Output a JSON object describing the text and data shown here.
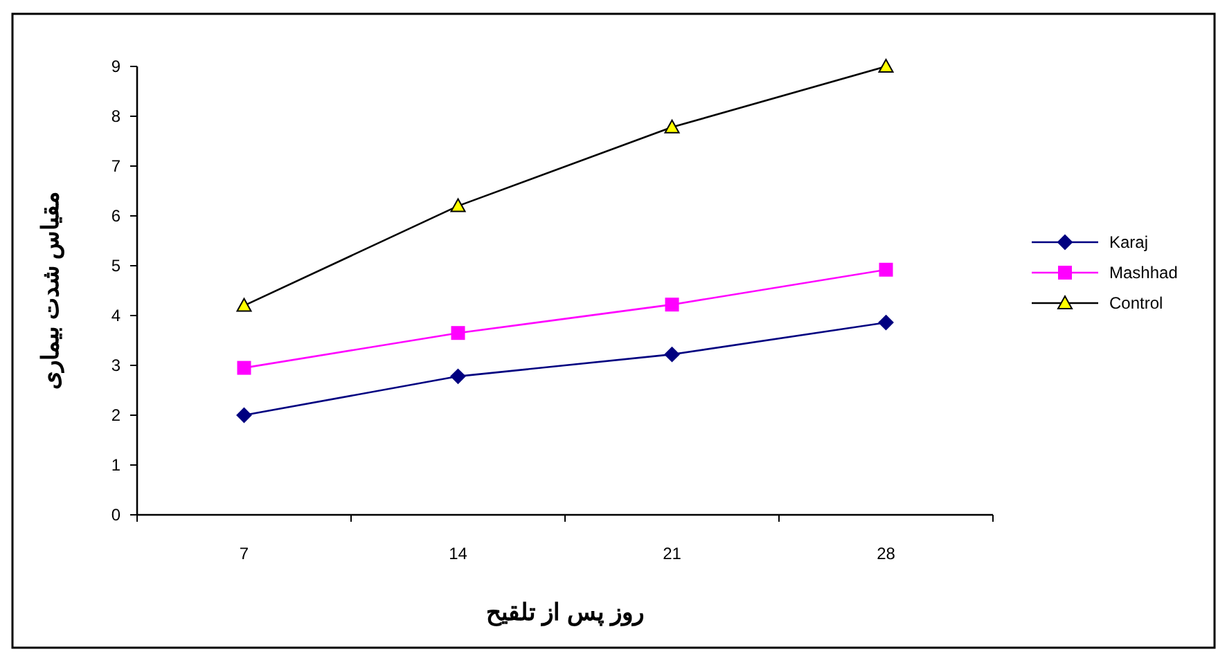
{
  "chart_data": {
    "type": "line",
    "xlabel": "روز پس از تلقیح",
    "ylabel": "مقیاس شدت بیماری",
    "categories": [
      "7",
      "14",
      "21",
      "28"
    ],
    "series": [
      {
        "name": "Karaj",
        "color": "#000080",
        "marker": "diamond",
        "values": [
          2.0,
          2.78,
          3.22,
          3.86
        ]
      },
      {
        "name": "Mashhad",
        "color": "#ff00ff",
        "marker": "square",
        "values": [
          2.95,
          3.65,
          4.22,
          4.92
        ]
      },
      {
        "name": "Control",
        "color": "#000000",
        "colors": [
          "#ffff00",
          "#ffff00",
          "#ffff00",
          "#ffff00"
        ],
        "marker": "triangle",
        "values": [
          4.2,
          6.2,
          7.78,
          9.0
        ]
      }
    ],
    "ylim": [
      0,
      9
    ],
    "yticks": [
      0,
      1,
      2,
      3,
      4,
      5,
      6,
      7,
      8,
      9
    ],
    "grid": false,
    "legend": "right",
    "line_style": "solid"
  }
}
